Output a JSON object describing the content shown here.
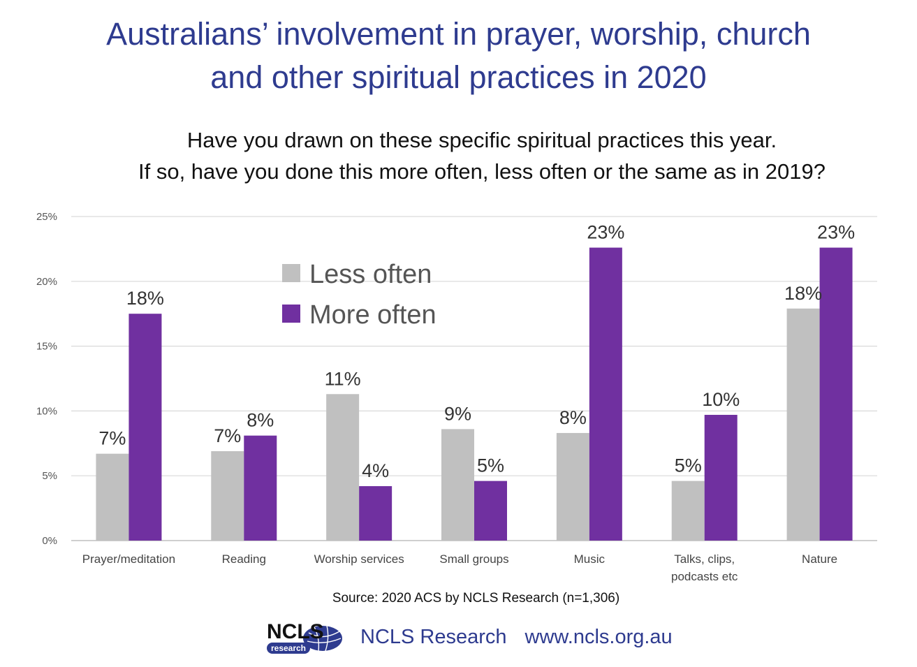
{
  "header": {
    "title_line1": "Australians’ involvement in prayer, worship, church",
    "title_line2": "and other spiritual practices in 2020",
    "question_line1": "Have you drawn on these specific spiritual practices this year.",
    "question_line2": "If so, have you done this more often, less often or the same as in 2019?"
  },
  "chart_data": {
    "type": "bar",
    "categories": [
      [
        "Prayer/meditation"
      ],
      [
        "Reading"
      ],
      [
        "Worship services"
      ],
      [
        "Small groups"
      ],
      [
        "Music"
      ],
      [
        "Talks, clips,",
        "podcasts etc"
      ],
      [
        "Nature"
      ]
    ],
    "series": [
      {
        "name": "Less often",
        "color": "#c0c0c0",
        "values": [
          6.7,
          6.9,
          11.3,
          8.6,
          8.3,
          4.6,
          17.9
        ],
        "labels": [
          "7%",
          "7%",
          "11%",
          "9%",
          "8%",
          "5%",
          "18%"
        ]
      },
      {
        "name": "More often",
        "color": "#7030a0",
        "values": [
          17.5,
          8.1,
          4.2,
          4.6,
          22.6,
          9.7,
          22.6
        ],
        "labels": [
          "18%",
          "8%",
          "4%",
          "5%",
          "23%",
          "10%",
          "23%"
        ]
      }
    ],
    "ylim": [
      0,
      25
    ],
    "yticks": [
      0,
      5,
      10,
      15,
      20,
      25
    ],
    "ytick_labels": [
      "0%",
      "5%",
      "10%",
      "15%",
      "20%",
      "25%"
    ],
    "grid": true,
    "legend": "top-left inside plot"
  },
  "footer": {
    "source": "Source: 2020 ACS by NCLS Research (n=1,306)",
    "logo_text": "NCLS",
    "logo_subtext": "research",
    "org_name": "NCLS Research",
    "org_url": "www.ncls.org.au"
  },
  "colors": {
    "title": "#2e3b8f",
    "less_often": "#c0c0c0",
    "more_often": "#7030a0"
  }
}
